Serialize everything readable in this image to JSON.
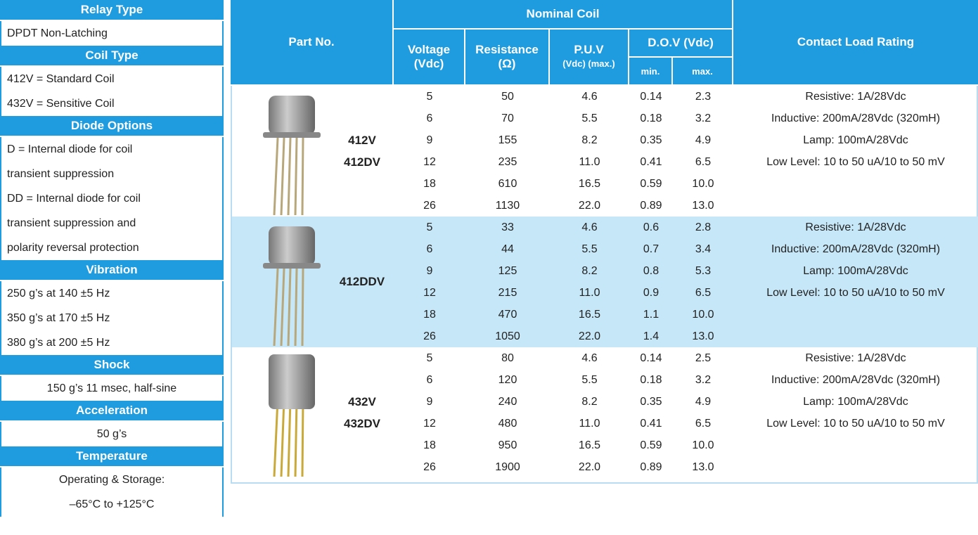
{
  "sidebar": {
    "sections": [
      {
        "title": "Relay Type",
        "lines": [
          "DPDT Non-Latching"
        ]
      },
      {
        "title": "Coil Type",
        "lines": [
          "412V = Standard Coil",
          "432V = Sensitive Coil"
        ]
      },
      {
        "title": "Diode Options",
        "lines": [
          "D = Internal diode for coil",
          "transient suppression",
          "DD = Internal diode for coil",
          "transient suppression and",
          "polarity reversal protection"
        ]
      },
      {
        "title": "Vibration",
        "lines": [
          "250 g’s at 140 ±5 Hz",
          "350 g’s at 170 ±5 Hz",
          "380 g’s at 200 ±5 Hz"
        ]
      },
      {
        "title": "Shock",
        "lines": [
          "150 g’s 11 msec, half-sine"
        ]
      },
      {
        "title": "Acceleration",
        "lines": [
          "50 g’s"
        ]
      },
      {
        "title": "Temperature",
        "lines": [
          "Operating & Storage:",
          "–65°C to +125°C"
        ]
      }
    ]
  },
  "table": {
    "headers": {
      "part_no": "Part No.",
      "nominal_coil": "Nominal Coil",
      "voltage": [
        "Voltage",
        "(Vdc)"
      ],
      "resistance": [
        "Resistance",
        "(Ω)"
      ],
      "puv": [
        "P.U.V",
        "(Vdc) (max.)"
      ],
      "dov": "D.O.V (Vdc)",
      "min": "min.",
      "max": "max.",
      "contact": "Contact Load Rating"
    },
    "groups": [
      {
        "part_numbers": [
          "412V",
          "412DV"
        ],
        "rows": [
          [
            "5",
            "50",
            "4.6",
            "0.14",
            "2.3"
          ],
          [
            "6",
            "70",
            "5.5",
            "0.18",
            "3.2"
          ],
          [
            "9",
            "155",
            "8.2",
            "0.35",
            "4.9"
          ],
          [
            "12",
            "235",
            "11.0",
            "0.41",
            "6.5"
          ],
          [
            "18",
            "610",
            "16.5",
            "0.59",
            "10.0"
          ],
          [
            "26",
            "1130",
            "22.0",
            "0.89",
            "13.0"
          ]
        ],
        "ratings": [
          "Resistive: 1A/28Vdc",
          "Inductive: 200mA/28Vdc (320mH)",
          "Lamp: 100mA/28Vdc",
          "Low Level: 10 to 50 uA/10 to 50 mV"
        ]
      },
      {
        "part_numbers": [
          "412DDV"
        ],
        "rows": [
          [
            "5",
            "33",
            "4.6",
            "0.6",
            "2.8"
          ],
          [
            "6",
            "44",
            "5.5",
            "0.7",
            "3.4"
          ],
          [
            "9",
            "125",
            "8.2",
            "0.8",
            "5.3"
          ],
          [
            "12",
            "215",
            "11.0",
            "0.9",
            "6.5"
          ],
          [
            "18",
            "470",
            "16.5",
            "1.1",
            "10.0"
          ],
          [
            "26",
            "1050",
            "22.0",
            "1.4",
            "13.0"
          ]
        ],
        "ratings": [
          "Resistive: 1A/28Vdc",
          "Inductive: 200mA/28Vdc (320mH)",
          "Lamp: 100mA/28Vdc",
          "Low Level: 10 to 50 uA/10 to 50 mV"
        ]
      },
      {
        "part_numbers": [
          "432V",
          "432DV"
        ],
        "rows": [
          [
            "5",
            "80",
            "4.6",
            "0.14",
            "2.5"
          ],
          [
            "6",
            "120",
            "5.5",
            "0.18",
            "3.2"
          ],
          [
            "9",
            "240",
            "8.2",
            "0.35",
            "4.9"
          ],
          [
            "12",
            "480",
            "11.0",
            "0.41",
            "6.5"
          ],
          [
            "18",
            "950",
            "16.5",
            "0.59",
            "10.0"
          ],
          [
            "26",
            "1900",
            "22.0",
            "0.89",
            "13.0"
          ]
        ],
        "ratings": [
          "Resistive: 1A/28Vdc",
          "Inductive: 200mA/28Vdc (320mH)",
          "Lamp: 100mA/28Vdc",
          "Low Level: 10 to 50 uA/10 to 50 mV"
        ]
      }
    ]
  }
}
